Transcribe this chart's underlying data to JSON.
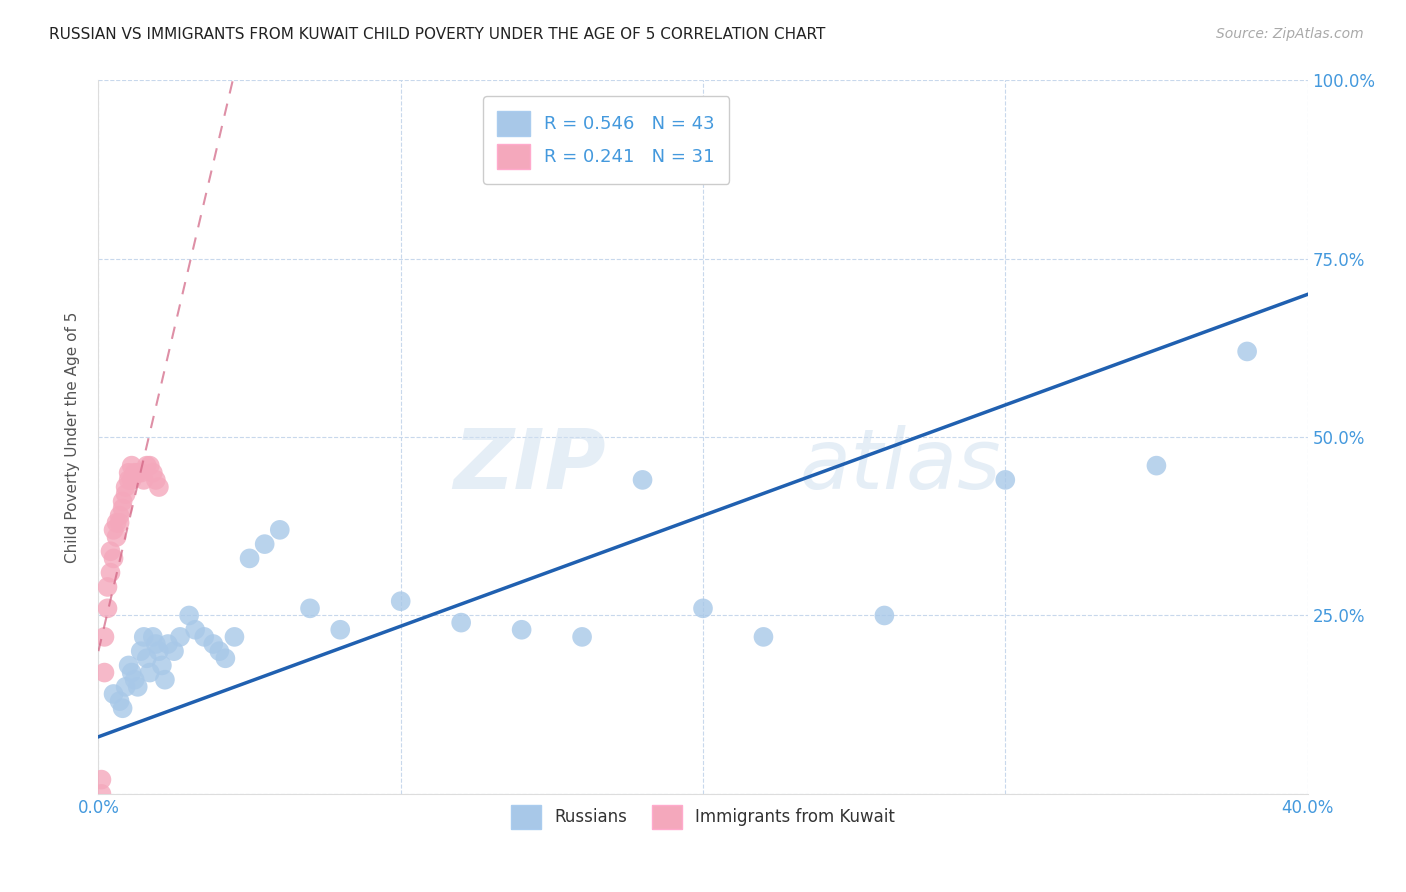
{
  "title": "RUSSIAN VS IMMIGRANTS FROM KUWAIT CHILD POVERTY UNDER THE AGE OF 5 CORRELATION CHART",
  "source": "Source: ZipAtlas.com",
  "ylabel": "Child Poverty Under the Age of 5",
  "xlim": [
    0.0,
    0.4
  ],
  "ylim": [
    0.0,
    1.0
  ],
  "xticks": [
    0.0,
    0.1,
    0.2,
    0.3,
    0.4
  ],
  "yticks": [
    0.0,
    0.25,
    0.5,
    0.75,
    1.0
  ],
  "xticklabels": [
    "0.0%",
    "",
    "",
    "",
    "40.0%"
  ],
  "yticklabels": [
    "",
    "25.0%",
    "50.0%",
    "75.0%",
    "100.0%"
  ],
  "russian_R": 0.546,
  "russian_N": 43,
  "kuwait_R": 0.241,
  "kuwait_N": 31,
  "russian_color": "#A8C8E8",
  "kuwait_color": "#F4A8BC",
  "russian_line_color": "#2060B0",
  "kuwait_line_color": "#D06080",
  "watermark_zip": "ZIP",
  "watermark_atlas": "atlas",
  "russian_x": [
    0.005,
    0.007,
    0.008,
    0.009,
    0.01,
    0.011,
    0.012,
    0.013,
    0.014,
    0.015,
    0.016,
    0.017,
    0.018,
    0.019,
    0.02,
    0.021,
    0.022,
    0.023,
    0.025,
    0.027,
    0.03,
    0.032,
    0.035,
    0.038,
    0.04,
    0.042,
    0.045,
    0.05,
    0.055,
    0.06,
    0.07,
    0.08,
    0.1,
    0.12,
    0.14,
    0.16,
    0.18,
    0.2,
    0.22,
    0.26,
    0.3,
    0.35,
    0.38
  ],
  "russian_y": [
    0.14,
    0.13,
    0.12,
    0.15,
    0.18,
    0.17,
    0.16,
    0.15,
    0.2,
    0.22,
    0.19,
    0.17,
    0.22,
    0.21,
    0.2,
    0.18,
    0.16,
    0.21,
    0.2,
    0.22,
    0.25,
    0.23,
    0.22,
    0.21,
    0.2,
    0.19,
    0.22,
    0.33,
    0.35,
    0.37,
    0.26,
    0.23,
    0.27,
    0.24,
    0.23,
    0.22,
    0.44,
    0.26,
    0.22,
    0.25,
    0.44,
    0.46,
    0.62
  ],
  "kuwait_x": [
    0.001,
    0.001,
    0.002,
    0.002,
    0.003,
    0.003,
    0.004,
    0.004,
    0.005,
    0.005,
    0.006,
    0.006,
    0.007,
    0.007,
    0.008,
    0.008,
    0.009,
    0.009,
    0.01,
    0.01,
    0.011,
    0.011,
    0.012,
    0.013,
    0.014,
    0.015,
    0.016,
    0.017,
    0.018,
    0.019,
    0.02
  ],
  "kuwait_y": [
    0.0,
    0.02,
    0.17,
    0.22,
    0.26,
    0.29,
    0.31,
    0.34,
    0.33,
    0.37,
    0.36,
    0.38,
    0.39,
    0.38,
    0.4,
    0.41,
    0.42,
    0.43,
    0.44,
    0.45,
    0.44,
    0.46,
    0.45,
    0.45,
    0.45,
    0.44,
    0.46,
    0.46,
    0.45,
    0.44,
    0.43
  ],
  "russian_slope": 1.55,
  "russian_intercept": 0.08,
  "kuwait_slope": 18.0,
  "kuwait_intercept": 0.2
}
